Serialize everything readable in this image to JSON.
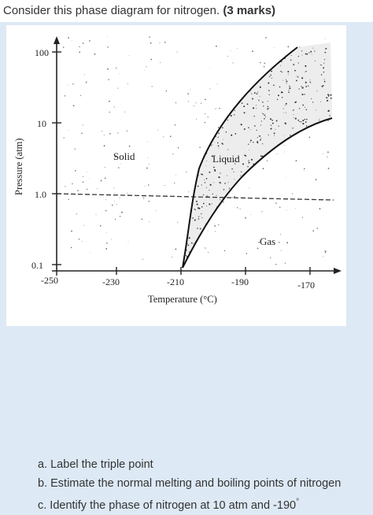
{
  "question": {
    "title": "Consider this phase diagram for nitrogen.",
    "marks": "(3 marks)"
  },
  "diagram": {
    "ylabel": "Pressure (atm)",
    "xlabel": "Temperature (°C)",
    "y_ticks": [
      "100",
      "10",
      "1.0",
      "0.1"
    ],
    "x_ticks": [
      "-250",
      "-230",
      "-210",
      "-190",
      "-170"
    ],
    "regions": {
      "solid": "Solid",
      "liquid": "Liquid",
      "gas": "Gas"
    }
  },
  "tasks": [
    {
      "text": "a. Label the triple point"
    },
    {
      "text": "b. Estimate the normal melting and boiling points of nitrogen"
    },
    {
      "text": "c. Identify the phase of nitrogen at 10 atm and -190",
      "sup": "°"
    }
  ]
}
